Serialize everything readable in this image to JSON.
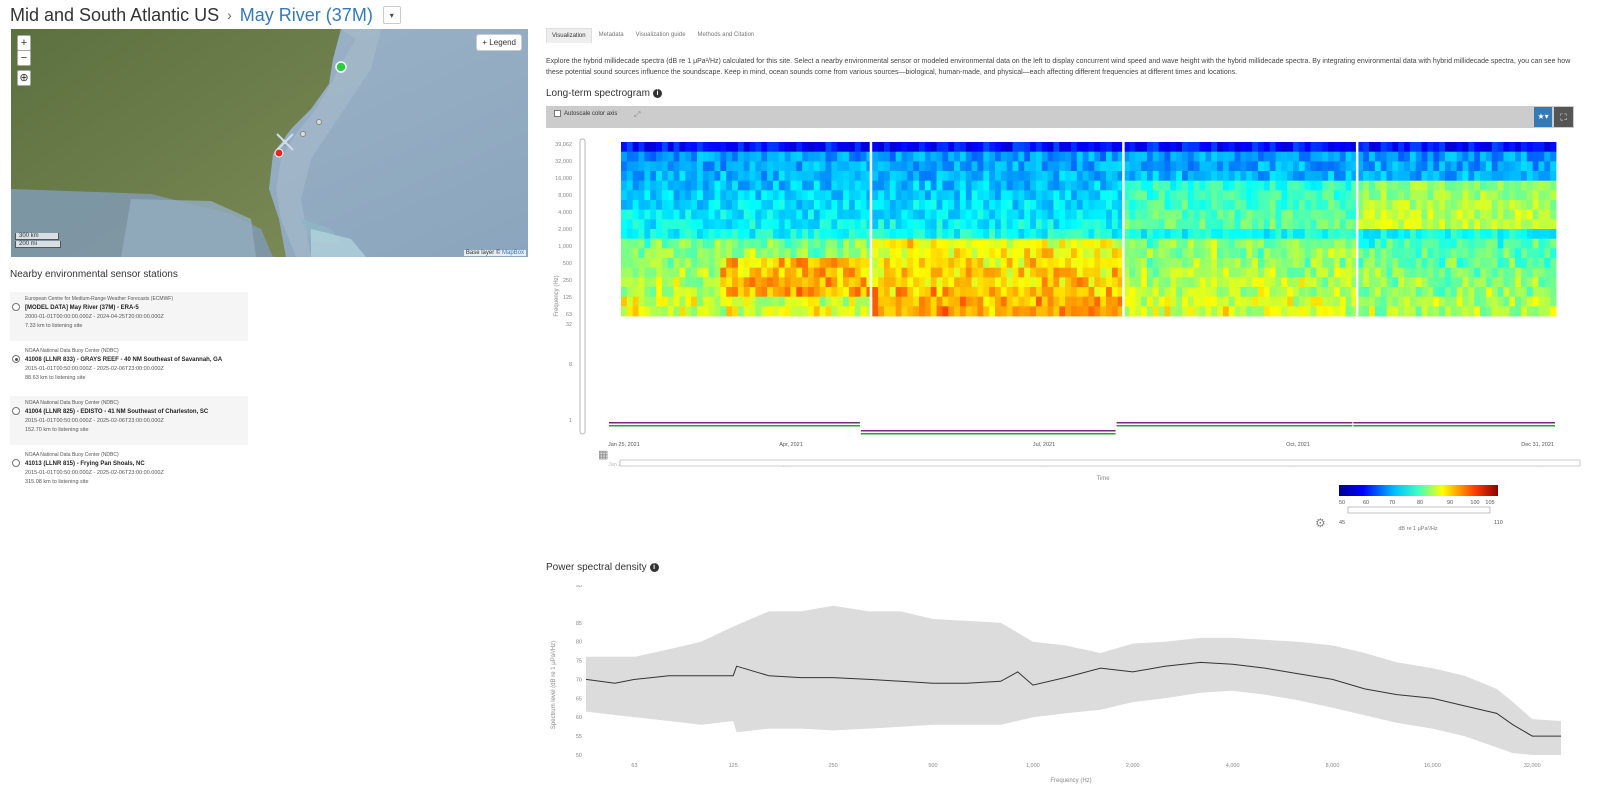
{
  "breadcrumb": {
    "region": "Mid and South Atlantic US",
    "separator": "›",
    "site": "May River (37M)"
  },
  "map": {
    "zoom_in": "+",
    "zoom_out": "−",
    "zoom_box": "⊕",
    "legend_label": "+ Legend",
    "scale_km": "300 km",
    "scale_mi": "200 mi",
    "attribution_prefix": "Base layer ©",
    "attribution_link": "MapBox"
  },
  "stations": {
    "title": "Nearby environmental sensor stations",
    "items": [
      {
        "org": "European Centre for Medium-Range Weather Forecasts (ECMWF)",
        "name": "[MODEL DATA] May River (37M) - ERA-5",
        "dates": "2000-01-01T00:00:00.000Z - 2024-04-25T20:00:00.000Z",
        "distance": "7.33 km to listening site",
        "selected": false
      },
      {
        "org": "NOAA National Data Buoy Center (NDBC)",
        "name": "41008 (LLNR 833) - GRAYS REEF - 40 NM Southeast of Savannah, GA",
        "dates": "2015-01-01T00:50:00.000Z - 2025-02-06T23:00:00.000Z",
        "distance": "88.63 km to listening site",
        "selected": true
      },
      {
        "org": "NOAA National Data Buoy Center (NDBC)",
        "name": "41004 (LLNR 825) - EDISTO - 41 NM Southeast of Charleston, SC",
        "dates": "2015-01-01T00:50:00.000Z - 2025-02-06T23:00:00.000Z",
        "distance": "152.70 km to listening site",
        "selected": false
      },
      {
        "org": "NOAA National Data Buoy Center (NDBC)",
        "name": "41013 (LLNR 815) - Frying Pan Shoals, NC",
        "dates": "2015-01-01T00:50:00.000Z - 2025-02-06T23:00:00.000Z",
        "distance": "315.08 km to listening site",
        "selected": false
      }
    ]
  },
  "tabs": [
    "Visualization",
    "Metadata",
    "Visualization guide",
    "Methods and Citation"
  ],
  "intro": "Explore the hybrid millidecade spectra (dB re 1 μPa²/Hz) calculated for this site. Select a nearby environmental sensor or modeled environmental data on the left to display concurrent wind speed and wave height with the hybrid millidecade spectra. By integrating environmental data with hybrid millidecade spectra, you can see how these potential sound sources influence the soundscape. Keep in mind, ocean sounds come from various sources—biological, human-made, and physical—each affecting different frequencies at different times and locations.",
  "spectrogram": {
    "title": "Long-term spectrogram",
    "autoscale_label": "Autoscale color axis",
    "ylabel": "Frequency (Hz)",
    "xlabel": "Time",
    "y_ticks": [
      "39,062",
      "32,000",
      "16,000",
      "8,000",
      "4,000",
      "2,000",
      "1,000",
      "500",
      "250",
      "125",
      "63"
    ],
    "y_ticks2": [
      "32",
      "8",
      "1"
    ],
    "x_ticks": [
      "Jan 25, 2021",
      "Apr, 2021",
      "Jul, 2021",
      "Oct, 2021",
      "Dec 31, 2021"
    ],
    "colorbar_ticks": [
      "50",
      "60",
      "70",
      "80",
      "90",
      "100",
      "105"
    ],
    "colorbar_range": [
      "45",
      "110"
    ],
    "colorbar_label": "dB re 1 μPa²/Hz",
    "colors": {
      "low": "#00008f",
      "mid": "#00ffff",
      "high": "#ff3300"
    }
  },
  "psd": {
    "title": "Power spectral density",
    "ylabel": "Spectrum level (dB re 1 μPa²/Hz)",
    "xlabel": "Frequency (Hz)"
  },
  "chart_data": {
    "type": "line",
    "title": "Power spectral density",
    "xlabel": "Frequency (Hz)",
    "ylabel": "Spectrum level (dB re 1 μPa²/Hz)",
    "x_scale": "log",
    "x_ticks": [
      "63",
      "125",
      "250",
      "500",
      "1,000",
      "2,000",
      "4,000",
      "8,000",
      "16,000",
      "32,000"
    ],
    "y_ticks": [
      "50",
      "55",
      "60",
      "65",
      "70",
      "75",
      "80",
      "85",
      "95"
    ],
    "ylim": [
      50,
      95
    ],
    "xlim": [
      45,
      39062
    ],
    "series": [
      {
        "x": [
          45,
          55,
          63,
          80,
          100,
          125,
          128,
          160,
          200,
          250,
          320,
          400,
          500,
          630,
          800,
          900,
          1000,
          1250,
          1600,
          2000,
          2500,
          3200,
          4000,
          5000,
          6300,
          8000,
          10000,
          12500,
          16000,
          20000,
          25000,
          28000,
          32000,
          39062
        ],
        "values": [
          70,
          69,
          70,
          71,
          71,
          71,
          73.5,
          71,
          70.5,
          70.5,
          70,
          69.5,
          69,
          69,
          69.5,
          72,
          68.5,
          70.5,
          73,
          72,
          73.5,
          74.5,
          74,
          73,
          71.5,
          70,
          67.5,
          66,
          65,
          63,
          61,
          58,
          55,
          55
        ]
      },
      {
        "x": [
          45,
          63,
          80,
          100,
          125,
          160,
          200,
          250,
          320,
          400,
          500,
          630,
          800,
          1000,
          1250,
          1600,
          2000,
          2500,
          3200,
          4000,
          5000,
          6300,
          8000,
          10000,
          12500,
          16000,
          20000,
          25000,
          28000,
          32000,
          39062
        ],
        "values": [
          76,
          76,
          78,
          80,
          84,
          88,
          88,
          89.5,
          88,
          88,
          86,
          85.5,
          85,
          80,
          79,
          77,
          79.5,
          80,
          81,
          81,
          80.5,
          80,
          79,
          77,
          74.5,
          73,
          71,
          67.5,
          64,
          59.5,
          59
        ]
      },
      {
        "x": [
          45,
          63,
          80,
          100,
          125,
          128,
          160,
          200,
          250,
          320,
          400,
          500,
          630,
          800,
          1000,
          1250,
          1600,
          2000,
          2500,
          3200,
          4000,
          5000,
          6300,
          8000,
          10000,
          12500,
          16000,
          20000,
          25000,
          28000,
          32000,
          39062
        ],
        "values": [
          61.5,
          60,
          59,
          58,
          59,
          56,
          57,
          57,
          56.5,
          57,
          57.5,
          58,
          58,
          58,
          60,
          61,
          62,
          64,
          65,
          66.5,
          67,
          66,
          64.5,
          62.5,
          60.5,
          58.5,
          57,
          55,
          52,
          50.5,
          50,
          50
        ]
      }
    ]
  }
}
